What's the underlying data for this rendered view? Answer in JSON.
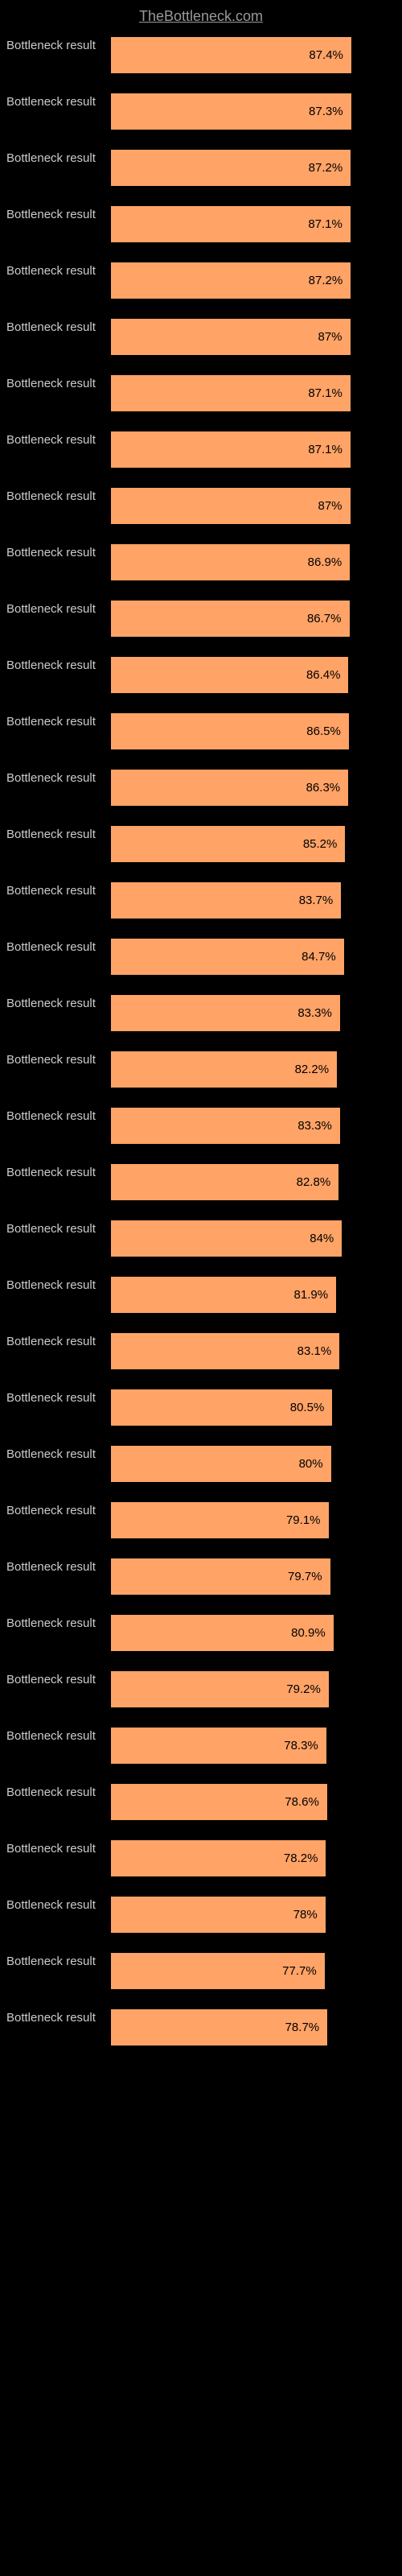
{
  "header": {
    "site_name": "TheBottleneck.com"
  },
  "chart": {
    "type": "horizontal-bar",
    "bar_color": "#ffa366",
    "background_color": "#000000",
    "label_color": "#cccccc",
    "value_color": "#000000",
    "max_value": 100,
    "bar_area_width_pct": 100,
    "rows": [
      {
        "label": "Bottleneck result",
        "value": 87.4,
        "display": "87.4%"
      },
      {
        "label": "Bottleneck result",
        "value": 87.3,
        "display": "87.3%"
      },
      {
        "label": "Bottleneck result",
        "value": 87.2,
        "display": "87.2%"
      },
      {
        "label": "Bottleneck result",
        "value": 87.1,
        "display": "87.1%"
      },
      {
        "label": "Bottleneck result",
        "value": 87.2,
        "display": "87.2%"
      },
      {
        "label": "Bottleneck result",
        "value": 87.0,
        "display": "87%"
      },
      {
        "label": "Bottleneck result",
        "value": 87.1,
        "display": "87.1%"
      },
      {
        "label": "Bottleneck result",
        "value": 87.1,
        "display": "87.1%"
      },
      {
        "label": "Bottleneck result",
        "value": 87.0,
        "display": "87%"
      },
      {
        "label": "Bottleneck result",
        "value": 86.9,
        "display": "86.9%"
      },
      {
        "label": "Bottleneck result",
        "value": 86.7,
        "display": "86.7%"
      },
      {
        "label": "Bottleneck result",
        "value": 86.4,
        "display": "86.4%"
      },
      {
        "label": "Bottleneck result",
        "value": 86.5,
        "display": "86.5%"
      },
      {
        "label": "Bottleneck result",
        "value": 86.3,
        "display": "86.3%"
      },
      {
        "label": "Bottleneck result",
        "value": 85.2,
        "display": "85.2%"
      },
      {
        "label": "Bottleneck result",
        "value": 83.7,
        "display": "83.7%"
      },
      {
        "label": "Bottleneck result",
        "value": 84.7,
        "display": "84.7%"
      },
      {
        "label": "Bottleneck result",
        "value": 83.3,
        "display": "83.3%"
      },
      {
        "label": "Bottleneck result",
        "value": 82.2,
        "display": "82.2%"
      },
      {
        "label": "Bottleneck result",
        "value": 83.3,
        "display": "83.3%"
      },
      {
        "label": "Bottleneck result",
        "value": 82.8,
        "display": "82.8%"
      },
      {
        "label": "Bottleneck result",
        "value": 84.0,
        "display": "84%"
      },
      {
        "label": "Bottleneck result",
        "value": 81.9,
        "display": "81.9%"
      },
      {
        "label": "Bottleneck result",
        "value": 83.1,
        "display": "83.1%"
      },
      {
        "label": "Bottleneck result",
        "value": 80.5,
        "display": "80.5%"
      },
      {
        "label": "Bottleneck result",
        "value": 80.0,
        "display": "80%"
      },
      {
        "label": "Bottleneck result",
        "value": 79.1,
        "display": "79.1%"
      },
      {
        "label": "Bottleneck result",
        "value": 79.7,
        "display": "79.7%"
      },
      {
        "label": "Bottleneck result",
        "value": 80.9,
        "display": "80.9%"
      },
      {
        "label": "Bottleneck result",
        "value": 79.2,
        "display": "79.2%"
      },
      {
        "label": "Bottleneck result",
        "value": 78.3,
        "display": "78.3%"
      },
      {
        "label": "Bottleneck result",
        "value": 78.6,
        "display": "78.6%"
      },
      {
        "label": "Bottleneck result",
        "value": 78.2,
        "display": "78.2%"
      },
      {
        "label": "Bottleneck result",
        "value": 78.0,
        "display": "78%"
      },
      {
        "label": "Bottleneck result",
        "value": 77.7,
        "display": "77.7%"
      },
      {
        "label": "Bottleneck result",
        "value": 78.7,
        "display": "78.7%"
      }
    ]
  }
}
